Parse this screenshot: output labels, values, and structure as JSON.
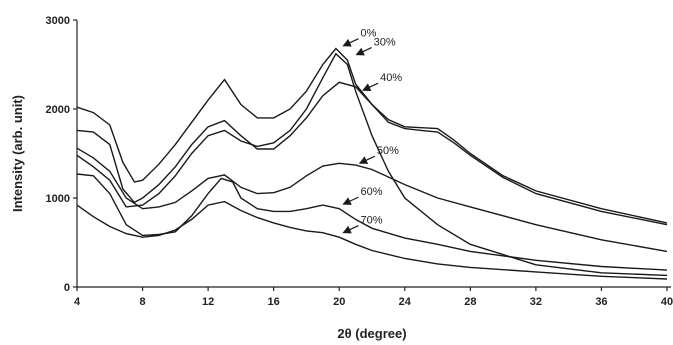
{
  "chart_data": {
    "type": "line",
    "title": "",
    "xlabel": "2θ (degree)",
    "ylabel": "Intensity (arb. unit)",
    "xlim": [
      4,
      40
    ],
    "ylim": [
      0,
      3000
    ],
    "xticks": [
      4,
      8,
      12,
      16,
      20,
      24,
      28,
      32,
      36,
      40
    ],
    "yticks": [
      0,
      1000,
      2000,
      3000
    ],
    "grid": false,
    "colors": {
      "line": "#1a1a1a",
      "axis": "#222222"
    },
    "series": [
      {
        "name": "0%",
        "x": [
          4,
          5,
          6,
          7,
          8,
          9,
          10,
          11,
          12,
          13,
          14,
          15,
          16,
          17,
          18,
          19,
          19.8,
          20.5,
          21,
          22,
          23,
          24,
          26,
          28,
          32,
          36,
          40
        ],
        "y": [
          1480,
          1350,
          1200,
          900,
          920,
          1050,
          1250,
          1500,
          1700,
          1760,
          1640,
          1580,
          1620,
          1760,
          2000,
          2350,
          2620,
          2500,
          2200,
          1700,
          1300,
          1000,
          700,
          480,
          250,
          160,
          130
        ]
      },
      {
        "name": "30%",
        "x": [
          4,
          5,
          6,
          6.8,
          7.5,
          8,
          9,
          10,
          11,
          12,
          13,
          14,
          15,
          16,
          17,
          18,
          19,
          19.8,
          20.5,
          21,
          22,
          23,
          24,
          25,
          26,
          27,
          28,
          30,
          32,
          36,
          40
        ],
        "y": [
          2020,
          1960,
          1820,
          1400,
          1180,
          1200,
          1380,
          1600,
          1850,
          2100,
          2330,
          2050,
          1900,
          1900,
          2000,
          2200,
          2500,
          2680,
          2550,
          2280,
          2050,
          1880,
          1800,
          1790,
          1780,
          1650,
          1500,
          1250,
          1080,
          880,
          720
        ]
      },
      {
        "name": "40%",
        "x": [
          4,
          5,
          6,
          6.8,
          7.5,
          8,
          9,
          10,
          11,
          12,
          13,
          14,
          15,
          16,
          17,
          18,
          19,
          20,
          21,
          22,
          23,
          24,
          25,
          26,
          27,
          28,
          30,
          32,
          36,
          40
        ],
        "y": [
          1760,
          1740,
          1600,
          1100,
          950,
          1000,
          1150,
          1350,
          1600,
          1800,
          1870,
          1700,
          1550,
          1550,
          1700,
          1900,
          2150,
          2300,
          2250,
          2050,
          1850,
          1780,
          1760,
          1740,
          1620,
          1480,
          1230,
          1050,
          850,
          700
        ]
      },
      {
        "name": "50%",
        "x": [
          4,
          5,
          6,
          7,
          8,
          9,
          10,
          11,
          12,
          13,
          14,
          15,
          16,
          17,
          18,
          19,
          20,
          21,
          22,
          24,
          26,
          28,
          32,
          36,
          40
        ],
        "y": [
          1560,
          1450,
          1300,
          1000,
          880,
          900,
          950,
          1080,
          1220,
          1260,
          1120,
          1050,
          1060,
          1120,
          1250,
          1360,
          1390,
          1370,
          1320,
          1150,
          1000,
          900,
          700,
          530,
          400
        ]
      },
      {
        "name": "60%",
        "x": [
          4,
          5,
          6,
          7,
          8,
          9,
          10,
          11,
          12,
          12.8,
          13.5,
          14,
          15,
          16,
          17,
          18,
          19,
          20,
          21,
          22,
          24,
          26,
          28,
          32,
          36,
          40
        ],
        "y": [
          1270,
          1250,
          1050,
          700,
          580,
          590,
          620,
          800,
          1050,
          1220,
          1180,
          1000,
          880,
          850,
          850,
          880,
          920,
          880,
          760,
          660,
          550,
          480,
          400,
          300,
          230,
          190
        ]
      },
      {
        "name": "70%",
        "x": [
          4,
          5,
          6,
          7,
          8,
          9,
          10,
          11,
          12,
          13,
          14,
          15,
          16,
          17,
          18,
          19,
          20,
          21,
          22,
          24,
          26,
          28,
          32,
          36,
          40
        ],
        "y": [
          920,
          790,
          680,
          600,
          560,
          580,
          640,
          760,
          920,
          960,
          860,
          780,
          720,
          670,
          630,
          610,
          560,
          480,
          410,
          320,
          260,
          220,
          170,
          120,
          90
        ]
      }
    ],
    "annotations": [
      {
        "text": "0%",
        "series": "0%",
        "x": 20.2,
        "y": 2700
      },
      {
        "text": "30%",
        "series": "30%",
        "x": 21.0,
        "y": 2600
      },
      {
        "text": "40%",
        "series": "40%",
        "x": 21.4,
        "y": 2200
      },
      {
        "text": "50%",
        "series": "50%",
        "x": 21.2,
        "y": 1380
      },
      {
        "text": "60%",
        "series": "60%",
        "x": 20.2,
        "y": 920
      },
      {
        "text": "70%",
        "series": "70%",
        "x": 20.2,
        "y": 600
      }
    ]
  }
}
